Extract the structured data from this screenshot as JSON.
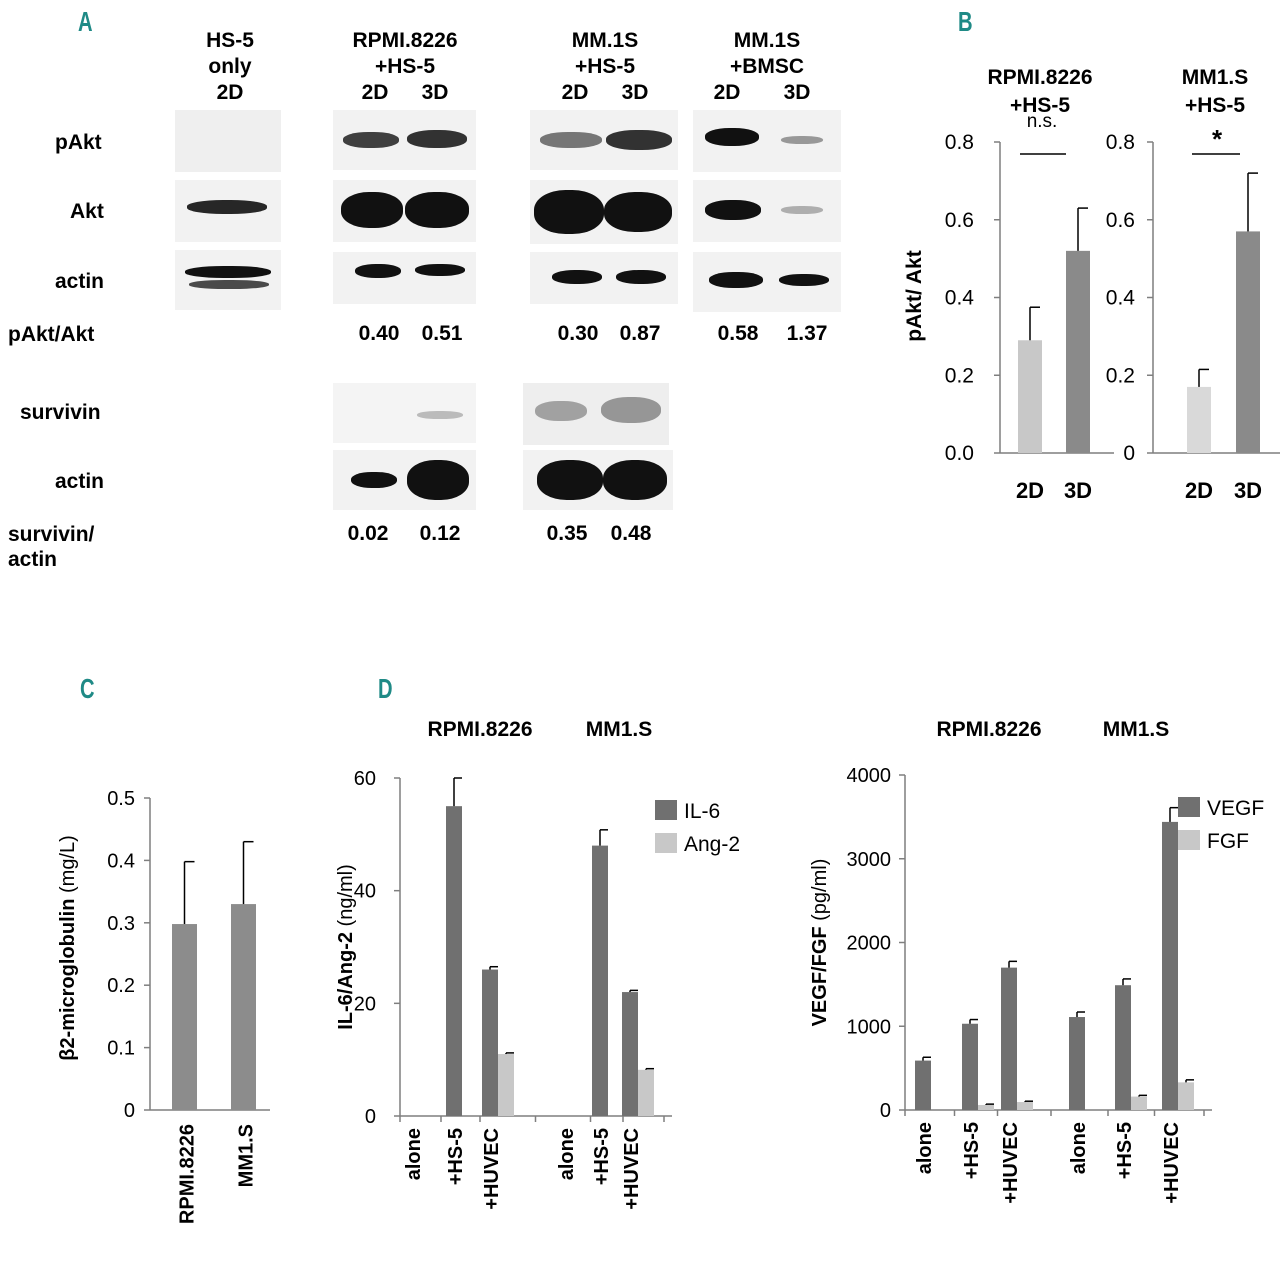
{
  "panel_labels": {
    "a": "A",
    "b": "B",
    "c": "C",
    "d": "D"
  },
  "panelA": {
    "columns": [
      {
        "l1": "HS-5",
        "l2": "only",
        "l3": "2D"
      },
      {
        "l1": "RPMI.8226",
        "l2": "+HS-5",
        "l3a": "2D",
        "l3b": "3D"
      },
      {
        "l1": "MM.1S",
        "l2": "+HS-5",
        "l3a": "2D",
        "l3b": "3D"
      },
      {
        "l1": "MM.1S",
        "l2": "+BMSC",
        "l3a": "2D",
        "l3b": "3D"
      }
    ],
    "rows": {
      "pakt": "pAkt",
      "akt": "Akt",
      "actin1": "actin",
      "ratio1": "pAkt/Akt",
      "survivin": "survivin",
      "actin2": "actin",
      "ratio2_l1": "survivin/",
      "ratio2_l2": "actin"
    },
    "pakt_akt": [
      "0.40",
      "0.51",
      "0.30",
      "0.87",
      "0.58",
      "1.37"
    ],
    "survivin_actin": [
      "0.02",
      "0.12",
      "0.35",
      "0.48"
    ]
  },
  "chart_data": [
    {
      "id": "B-left",
      "type": "bar",
      "title": "RPMI.8226 +HS-5",
      "title_l1": "RPMI.8226",
      "title_l2": "+HS-5",
      "ylabel": "pAkt/ Akt",
      "categories": [
        "2D",
        "3D"
      ],
      "values": [
        0.29,
        0.52
      ],
      "errors": [
        0.085,
        0.11
      ],
      "ylim": [
        0,
        0.8
      ],
      "yticks": [
        "0.0",
        "0.2",
        "0.4",
        "0.6",
        "0.8"
      ],
      "significance": "n.s.",
      "colors": [
        "#c8c8c8",
        "#8a8a8a"
      ]
    },
    {
      "id": "B-right",
      "type": "bar",
      "title": "MM1.S +HS-5",
      "title_l1": "MM1.S",
      "title_l2": "+HS-5",
      "categories": [
        "2D",
        "3D"
      ],
      "values": [
        0.17,
        0.57
      ],
      "errors": [
        0.045,
        0.15
      ],
      "ylim": [
        0,
        0.8
      ],
      "yticks": [
        "0",
        "0.2",
        "0.4",
        "0.6",
        "0.8"
      ],
      "significance": "*",
      "colors": [
        "#d9d9d9",
        "#8a8a8a"
      ]
    },
    {
      "id": "C",
      "type": "bar",
      "ylabel_main": "β2-microglobulin",
      "ylabel_unit": "(mg/L)",
      "categories": [
        "RPMI.8226",
        "MM1.S"
      ],
      "values": [
        0.298,
        0.33
      ],
      "errors": [
        0.1,
        0.1
      ],
      "ylim": [
        0,
        0.5
      ],
      "yticks": [
        "0",
        "0.1",
        "0.2",
        "0.3",
        "0.4",
        "0.5"
      ],
      "colors": [
        "#8c8c8c",
        "#8c8c8c"
      ]
    },
    {
      "id": "D-left",
      "type": "bar",
      "group_titles": [
        "RPMI.8226",
        "MM1.S"
      ],
      "ylabel_main": "IL-6/Ang-2",
      "ylabel_unit": "(ng/ml)",
      "categories": [
        "alone",
        "+HS-5",
        "+HUVEC",
        "alone",
        "+HS-5",
        "+HUVEC"
      ],
      "series": [
        {
          "name": "IL-6",
          "color": "#707070",
          "values": [
            0,
            55,
            26,
            0,
            48,
            22
          ],
          "errors": [
            0,
            5,
            0.5,
            0,
            2.8,
            0.3
          ]
        },
        {
          "name": "Ang-2",
          "color": "#c8c8c8",
          "values": [
            0,
            0,
            11,
            0,
            0,
            8.2
          ],
          "errors": [
            0,
            0,
            0.2,
            0,
            0,
            0.2
          ]
        }
      ],
      "ylim": [
        0,
        60
      ],
      "yticks": [
        "0",
        "20",
        "40",
        "60"
      ]
    },
    {
      "id": "D-right",
      "type": "bar",
      "group_titles": [
        "RPMI.8226",
        "MM1.S"
      ],
      "ylabel_main": "VEGF/FGF",
      "ylabel_unit": "(pg/ml)",
      "categories": [
        "alone",
        "+HS-5",
        "+HUVEC",
        "alone",
        "+HS-5",
        "+HUVEC"
      ],
      "series": [
        {
          "name": "VEGF",
          "color": "#707070",
          "values": [
            590,
            1030,
            1700,
            1110,
            1490,
            3440
          ],
          "errors": [
            40,
            50,
            75,
            60,
            75,
            170
          ]
        },
        {
          "name": "FGF",
          "color": "#c8c8c8",
          "values": [
            0,
            60,
            95,
            0,
            160,
            330
          ],
          "errors": [
            0,
            10,
            10,
            0,
            15,
            30
          ]
        }
      ],
      "ylim": [
        0,
        4000
      ],
      "yticks": [
        "0",
        "1000",
        "2000",
        "3000",
        "4000"
      ]
    }
  ]
}
